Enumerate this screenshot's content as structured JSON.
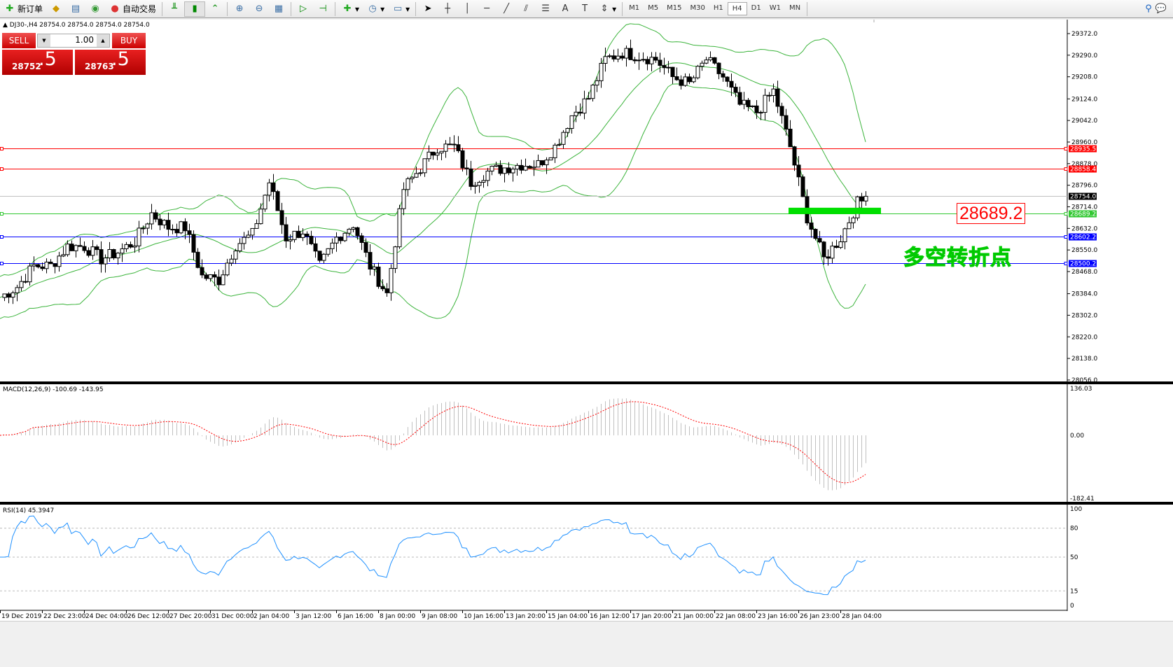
{
  "toolbar": {
    "new_order": "新订单",
    "auto_trading": "自动交易",
    "timeframes": [
      "M1",
      "M5",
      "M15",
      "M30",
      "H1",
      "H4",
      "D1",
      "W1",
      "MN"
    ],
    "active_timeframe": "H4"
  },
  "symbol_info": "DJ30-,H4  28754.0 28754.0 28754.0 28754.0",
  "trade_panel": {
    "sell_label": "SELL",
    "buy_label": "BUY",
    "lot": "1.00",
    "sell_big": "28752",
    "sell_small": ".5",
    "buy_big": "28763",
    "buy_small": ".5",
    "color": "#e02020"
  },
  "price_axis": [
    "29372.0",
    "29290.0",
    "29208.0",
    "29124.0",
    "29042.0",
    "28960.0",
    "28878.0",
    "28796.0",
    "28714.0",
    "28632.0",
    "28550.0",
    "28468.0",
    "28384.0",
    "28302.0",
    "28220.0",
    "28138.0",
    "28056.0"
  ],
  "levels": [
    {
      "price": 28935.5,
      "label": "28935.5",
      "color": "#ff0000"
    },
    {
      "price": 28858.4,
      "label": "28858.4",
      "color": "#ff0000"
    },
    {
      "price": 28754.0,
      "label": "28754.0",
      "color": "#000000"
    },
    {
      "price": 28689.2,
      "label": "28689.2",
      "color": "#32c832"
    },
    {
      "price": 28602.2,
      "label": "28602.2",
      "color": "#0000ff"
    },
    {
      "price": 28500.2,
      "label": "28500.2",
      "color": "#0000ff"
    }
  ],
  "annotation_price": "28689.2",
  "annotation_text": "多空转折点",
  "macd": {
    "label": "MACD(12,26,9) -100.69 -143.95",
    "axis": [
      "136.03",
      "0.00",
      "-182.41"
    ]
  },
  "rsi": {
    "label": "RSI(14) 45.3947",
    "axis": [
      "100",
      "80",
      "50",
      "15",
      "0"
    ]
  },
  "time_axis": [
    "19 Dec 2019",
    "22 Dec 23:00",
    "24 Dec 04:00",
    "26 Dec 12:00",
    "27 Dec 20:00",
    "31 Dec 00:00",
    "2 Jan 04:00",
    "3 Jan 12:00",
    "6 Jan 16:00",
    "8 Jan 00:00",
    "9 Jan 08:00",
    "10 Jan 16:00",
    "13 Jan 20:00",
    "15 Jan 04:00",
    "16 Jan 12:00",
    "17 Jan 20:00",
    "21 Jan 00:00",
    "22 Jan 08:00",
    "23 Jan 16:00",
    "26 Jan 23:00",
    "28 Jan 04:00"
  ],
  "chart_data": {
    "type": "candlestick",
    "symbol": "DJ30-",
    "timeframe": "H4",
    "ylim": [
      28056,
      29372
    ],
    "close_path": [
      28370,
      28410,
      28490,
      28490,
      28564,
      28564,
      28516,
      28542,
      28582,
      28689,
      28636,
      28636,
      28450,
      28436,
      28569,
      28609,
      28808,
      28596,
      28622,
      28489,
      28596,
      28649,
      28489,
      28383,
      28782,
      28862,
      28942,
      28942,
      28808,
      28848,
      28862,
      28875,
      28875,
      28942,
      29061,
      29128,
      29274,
      29300,
      29287,
      29274,
      29207,
      29181,
      29274,
      29207,
      29101,
      29074,
      29154,
      28942,
      28675,
      28516,
      28596,
      28729,
      28754
    ]
  }
}
